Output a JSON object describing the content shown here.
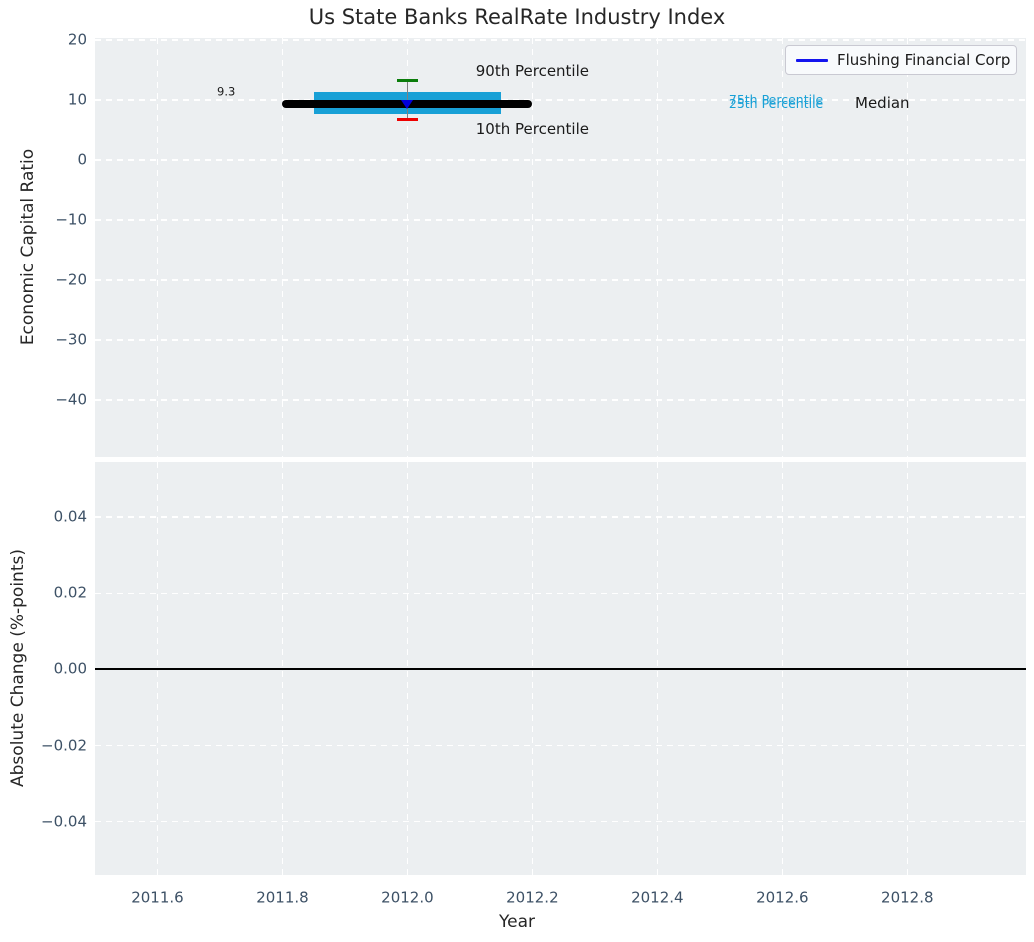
{
  "figure": {
    "title": "Us State Banks RealRate Industry Index",
    "background": "#ffffff",
    "axes_background": "#eceff1",
    "grid_color": "#ffffff",
    "tick_color": "#3d5166",
    "text_color": "#262626"
  },
  "legend": {
    "label": "Flushing Financial Corp",
    "line_color": "#1414ee"
  },
  "chart_data": [
    {
      "type": "line",
      "title": "Us State Banks RealRate Industry Index",
      "ylabel": "Economic Capital Ratio",
      "grid": true,
      "legend_position": "upper right",
      "xlim": [
        2011.5,
        2012.99
      ],
      "ylim": [
        -49.5,
        20.35
      ],
      "yticks": [
        20,
        10,
        0,
        -10,
        -20,
        -30,
        -40
      ],
      "ytick_labels": [
        "20",
        "10",
        "0",
        "−10",
        "−20",
        "−30",
        "−40"
      ],
      "xticks": [
        2011.6,
        2011.8,
        2012.0,
        2012.2,
        2012.4,
        2012.6,
        2012.8
      ],
      "xtick_labels": [
        "2011.6",
        "2011.8",
        "2012.0",
        "2012.2",
        "2012.4",
        "2012.6",
        "2012.8"
      ],
      "series": [
        {
          "name": "Flushing Financial Corp",
          "x": [
            2012.0
          ],
          "y": [
            9.3
          ],
          "color": "#0000dd",
          "marker": "triangle-down"
        }
      ],
      "industry_band": {
        "x": 2012.0,
        "median": 9.3,
        "p25": 7.7,
        "p75": 11.3,
        "p10": 6.8,
        "p90": 13.2,
        "median_line_span": [
          2011.8,
          2012.2
        ],
        "box_span": [
          2011.85,
          2012.15
        ],
        "cap_halfwidth": 0.017,
        "box_color": "#18a0d6",
        "median_color": "#000000",
        "whisker_color": "#7f7f7f",
        "p90_color": "#0b7d0b",
        "p10_color": "#ee0000"
      },
      "annotations": [
        {
          "text": "9.3",
          "x": 2011.71,
          "y": 11.4,
          "color": "#1a1a1a",
          "size": 11.5
        },
        {
          "text": "90th Percentile",
          "x": 2012.2,
          "y": 14.8,
          "color": "#1a1a1a",
          "size": 15
        },
        {
          "text": "10th Percentile",
          "x": 2012.2,
          "y": 5.2,
          "color": "#1a1a1a",
          "size": 15
        },
        {
          "text": "75th Percentile",
          "x": 2012.59,
          "y": 10.05,
          "color": "#18a0d6",
          "size": 12.5
        },
        {
          "text": "25th Percentile",
          "x": 2012.59,
          "y": 9.35,
          "color": "#18a0d6",
          "size": 12.5
        },
        {
          "text": "Median",
          "x": 2012.76,
          "y": 9.55,
          "color": "#1a1a1a",
          "size": 15
        }
      ]
    },
    {
      "type": "line",
      "ylabel": "Absolute Change (%-points)",
      "xlabel": "Year",
      "grid": true,
      "xlim": [
        2011.5,
        2012.99
      ],
      "ylim": [
        -0.054,
        0.0545
      ],
      "yticks": [
        0.04,
        0.02,
        0.0,
        -0.02,
        -0.04
      ],
      "ytick_labels": [
        "0.04",
        "0.02",
        "0.00",
        "−0.02",
        "−0.04"
      ],
      "xticks": [
        2011.6,
        2011.8,
        2012.0,
        2012.2,
        2012.4,
        2012.6,
        2012.8
      ],
      "xtick_labels": [
        "2011.6",
        "2011.8",
        "2012.0",
        "2012.2",
        "2012.4",
        "2012.6",
        "2012.8"
      ],
      "series": [],
      "zero_line": {
        "y": 0.0,
        "color": "#000000"
      }
    }
  ]
}
